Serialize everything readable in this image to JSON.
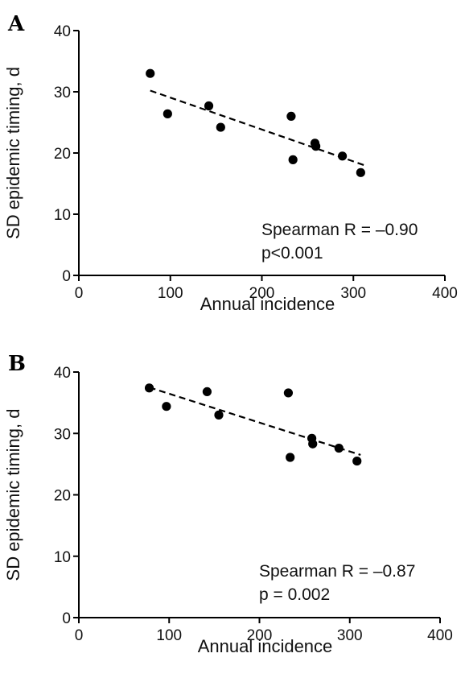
{
  "chart_data": [
    {
      "type": "scatter",
      "panel_label": "A",
      "xlabel": "Annual incidence",
      "ylabel": "SD epidemic timing, d",
      "xlim": [
        0,
        400
      ],
      "ylim": [
        0,
        40
      ],
      "x_ticks": [
        0,
        100,
        200,
        300,
        400
      ],
      "y_ticks": [
        0,
        10,
        20,
        30,
        40
      ],
      "points": [
        {
          "x": 78,
          "y": 33.0
        },
        {
          "x": 97,
          "y": 26.4
        },
        {
          "x": 142,
          "y": 27.7
        },
        {
          "x": 155,
          "y": 24.2
        },
        {
          "x": 232,
          "y": 26.0
        },
        {
          "x": 234,
          "y": 18.9
        },
        {
          "x": 258,
          "y": 21.6
        },
        {
          "x": 259,
          "y": 21.1
        },
        {
          "x": 288,
          "y": 19.5
        },
        {
          "x": 308,
          "y": 16.8
        }
      ],
      "fit_line": {
        "x": [
          78,
          312
        ],
        "y": [
          30.2,
          18.0
        ]
      },
      "annotations": [
        "Spearman R = –0.90",
        "p<0.001"
      ],
      "grid": false
    },
    {
      "type": "scatter",
      "panel_label": "B",
      "xlabel": "Annual incidence",
      "ylabel": "SD epidemic timing, d",
      "xlim": [
        0,
        400
      ],
      "ylim": [
        0,
        40
      ],
      "x_ticks": [
        0,
        100,
        200,
        300,
        400
      ],
      "y_ticks": [
        0,
        10,
        20,
        30,
        40
      ],
      "points": [
        {
          "x": 78,
          "y": 37.4
        },
        {
          "x": 97,
          "y": 34.4
        },
        {
          "x": 142,
          "y": 36.8
        },
        {
          "x": 155,
          "y": 33.0
        },
        {
          "x": 232,
          "y": 36.6
        },
        {
          "x": 234,
          "y": 26.1
        },
        {
          "x": 258,
          "y": 29.2
        },
        {
          "x": 259,
          "y": 28.3
        },
        {
          "x": 288,
          "y": 27.6
        },
        {
          "x": 308,
          "y": 25.5
        }
      ],
      "fit_line": {
        "x": [
          78,
          312
        ],
        "y": [
          37.5,
          26.5
        ]
      },
      "annotations": [
        "Spearman R = –0.87",
        "p = 0.002"
      ],
      "grid": false
    }
  ]
}
